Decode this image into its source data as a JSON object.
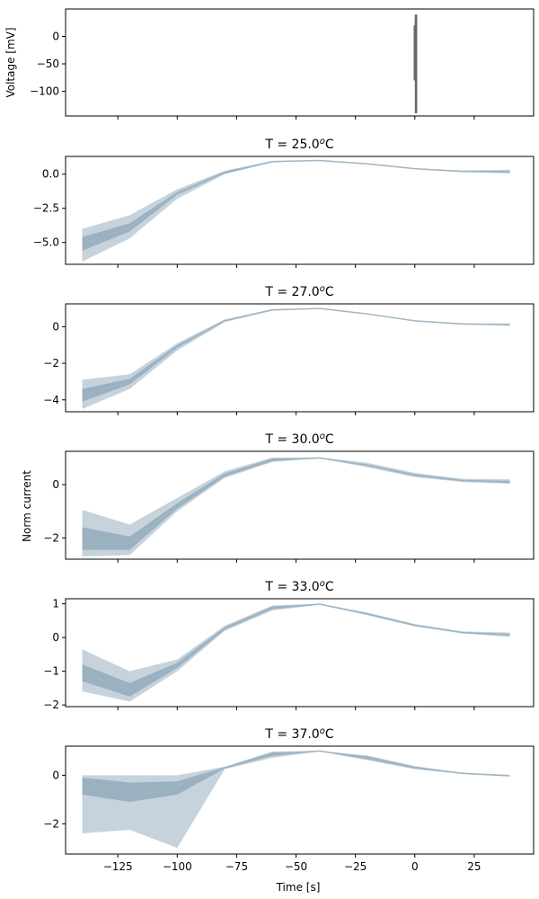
{
  "figure": {
    "xlabel": "Time [s]",
    "shared_ylabel": "Norm current"
  },
  "colors": {
    "band": "#a7bccb",
    "band_dark": "#8ea6b6",
    "line": "#9fb5c4",
    "voltage": "#676767",
    "axis": "#000000"
  },
  "chart_data": [
    {
      "type": "line",
      "title": "",
      "ylabel": "Voltage [mV]",
      "xlim": [
        -147,
        50
      ],
      "ylim": [
        -145,
        50
      ],
      "yticks": [
        0,
        -50,
        -100
      ],
      "xticks": [
        -125,
        -100,
        -75,
        -50,
        -25,
        0,
        25
      ],
      "show_xtick_labels": false,
      "x": [
        0,
        0,
        0,
        0.5,
        0.5,
        0.5,
        0.5
      ],
      "y": [
        -80,
        20,
        -80,
        40,
        -140,
        40,
        -140
      ]
    },
    {
      "type": "area",
      "title": "T = 25.0",
      "title_sup": "o",
      "title_unit": "C",
      "xlim": [
        -147,
        50
      ],
      "ylim": [
        -6.6,
        1.3
      ],
      "yticks": [
        0.0,
        -2.5,
        -5.0
      ],
      "ytick_labels": [
        "0.0",
        "−2.5",
        "−5.0"
      ],
      "xticks": [
        -125,
        -100,
        -75,
        -50,
        -25,
        0,
        25
      ],
      "show_xtick_labels": false,
      "x": [
        -140,
        -120,
        -100,
        -80,
        -60,
        -40,
        -20,
        0,
        20,
        40
      ],
      "outer_lo": [
        -6.4,
        -4.7,
        -1.8,
        0.0,
        0.86,
        1.0,
        0.75,
        0.37,
        0.16,
        0.05
      ],
      "outer_hi": [
        -4.0,
        -3.0,
        -1.1,
        0.25,
        0.97,
        1.0,
        0.78,
        0.42,
        0.28,
        0.33
      ],
      "mid_lo": [
        -5.6,
        -4.2,
        -1.5,
        0.05,
        0.88,
        1.0,
        0.76,
        0.38,
        0.18,
        0.12
      ],
      "mid_hi": [
        -4.6,
        -3.6,
        -1.3,
        0.2,
        0.95,
        1.0,
        0.77,
        0.41,
        0.24,
        0.25
      ],
      "median": [
        -5.1,
        -3.9,
        -1.4,
        0.12,
        0.92,
        1.0,
        0.76,
        0.4,
        0.2,
        0.18
      ]
    },
    {
      "type": "area",
      "title": "T = 27.0",
      "title_sup": "o",
      "title_unit": "C",
      "xlim": [
        -147,
        50
      ],
      "ylim": [
        -4.65,
        1.25
      ],
      "yticks": [
        0,
        -2,
        -4
      ],
      "ytick_labels": [
        "0",
        "−2",
        "−4"
      ],
      "xticks": [
        -125,
        -100,
        -75,
        -50,
        -25,
        0,
        25
      ],
      "show_xtick_labels": false,
      "x": [
        -140,
        -120,
        -100,
        -80,
        -60,
        -40,
        -20,
        0,
        20,
        40
      ],
      "outer_lo": [
        -4.5,
        -3.4,
        -1.3,
        0.25,
        0.88,
        1.0,
        0.7,
        0.3,
        0.12,
        0.05
      ],
      "outer_hi": [
        -2.9,
        -2.6,
        -0.9,
        0.4,
        0.96,
        1.0,
        0.72,
        0.34,
        0.18,
        0.18
      ],
      "mid_lo": [
        -4.1,
        -3.15,
        -1.15,
        0.3,
        0.9,
        1.0,
        0.7,
        0.31,
        0.14,
        0.08
      ],
      "mid_hi": [
        -3.4,
        -2.85,
        -1.0,
        0.36,
        0.94,
        1.0,
        0.71,
        0.33,
        0.16,
        0.14
      ],
      "median": [
        -3.75,
        -3.0,
        -1.08,
        0.33,
        0.92,
        1.0,
        0.7,
        0.32,
        0.15,
        0.11
      ]
    },
    {
      "type": "area",
      "title": "T = 30.0",
      "title_sup": "o",
      "title_unit": "C",
      "xlim": [
        -147,
        50
      ],
      "ylim": [
        -2.8,
        1.25
      ],
      "yticks": [
        0,
        -2
      ],
      "ytick_labels": [
        "0",
        "−2"
      ],
      "xticks": [
        -125,
        -100,
        -75,
        -50,
        -25,
        0,
        25
      ],
      "show_xtick_labels": false,
      "x": [
        -140,
        -120,
        -100,
        -80,
        -60,
        -40,
        -20,
        0,
        20,
        40
      ],
      "outer_lo": [
        -2.7,
        -2.65,
        -1.0,
        0.25,
        0.85,
        0.98,
        0.65,
        0.28,
        0.1,
        0.03
      ],
      "outer_hi": [
        -0.95,
        -1.5,
        -0.5,
        0.5,
        1.02,
        1.02,
        0.82,
        0.44,
        0.22,
        0.2
      ],
      "mid_lo": [
        -2.45,
        -2.45,
        -0.9,
        0.3,
        0.88,
        1.0,
        0.7,
        0.32,
        0.13,
        0.06
      ],
      "mid_hi": [
        -1.6,
        -1.95,
        -0.7,
        0.42,
        0.98,
        1.0,
        0.76,
        0.39,
        0.18,
        0.14
      ],
      "median": [
        -2.05,
        -2.2,
        -0.8,
        0.36,
        0.93,
        1.0,
        0.73,
        0.35,
        0.15,
        0.09
      ]
    },
    {
      "type": "area",
      "title": "T = 33.0",
      "title_sup": "o",
      "title_unit": "C",
      "xlim": [
        -147,
        50
      ],
      "ylim": [
        -2.05,
        1.15
      ],
      "yticks": [
        1,
        0,
        -1,
        -2
      ],
      "ytick_labels": [
        "1",
        "0",
        "−1",
        "−2"
      ],
      "xticks": [
        -125,
        -100,
        -75,
        -50,
        -25,
        0,
        25
      ],
      "show_xtick_labels": false,
      "x": [
        -140,
        -120,
        -100,
        -80,
        -60,
        -40,
        -20,
        0,
        20,
        40
      ],
      "outer_lo": [
        -1.6,
        -1.9,
        -1.0,
        0.2,
        0.8,
        0.97,
        0.66,
        0.33,
        0.12,
        0.02
      ],
      "outer_hi": [
        -0.35,
        -1.0,
        -0.65,
        0.35,
        0.95,
        1.0,
        0.74,
        0.4,
        0.18,
        0.15
      ],
      "mid_lo": [
        -1.3,
        -1.75,
        -0.9,
        0.23,
        0.84,
        0.98,
        0.68,
        0.34,
        0.13,
        0.05
      ],
      "mid_hi": [
        -0.8,
        -1.35,
        -0.75,
        0.31,
        0.92,
        1.0,
        0.72,
        0.38,
        0.16,
        0.11
      ],
      "median": [
        -1.05,
        -1.55,
        -0.82,
        0.27,
        0.88,
        0.99,
        0.7,
        0.36,
        0.15,
        0.08
      ]
    },
    {
      "type": "area",
      "title": "T = 37.0",
      "title_sup": "o",
      "title_unit": "C",
      "xlim": [
        -147,
        50
      ],
      "ylim": [
        -3.25,
        1.2
      ],
      "yticks": [
        0,
        -2
      ],
      "ytick_labels": [
        "0",
        "−2"
      ],
      "xticks": [
        -125,
        -100,
        -75,
        -50,
        -25,
        0,
        25
      ],
      "xtick_labels": [
        "−125",
        "−100",
        "−75",
        "−50",
        "−25",
        "0",
        "25"
      ],
      "show_xtick_labels": true,
      "x": [
        -140,
        -120,
        -100,
        -80,
        -60,
        -40,
        -20,
        0,
        20,
        40
      ],
      "outer_lo": [
        -2.4,
        -2.25,
        -3.0,
        0.25,
        0.72,
        0.98,
        0.62,
        0.25,
        0.05,
        -0.05
      ],
      "outer_hi": [
        0.0,
        0.0,
        0.0,
        0.35,
        0.98,
        1.0,
        0.82,
        0.38,
        0.1,
        0.02
      ],
      "mid_lo": [
        -0.8,
        -1.1,
        -0.8,
        0.28,
        0.8,
        0.99,
        0.66,
        0.28,
        0.06,
        -0.04
      ],
      "mid_hi": [
        -0.1,
        -0.3,
        -0.25,
        0.34,
        0.94,
        1.0,
        0.78,
        0.35,
        0.09,
        0.01
      ],
      "median": [
        -0.4,
        -0.85,
        -0.4,
        0.31,
        0.88,
        1.0,
        0.72,
        0.32,
        0.08,
        -0.02
      ]
    }
  ]
}
